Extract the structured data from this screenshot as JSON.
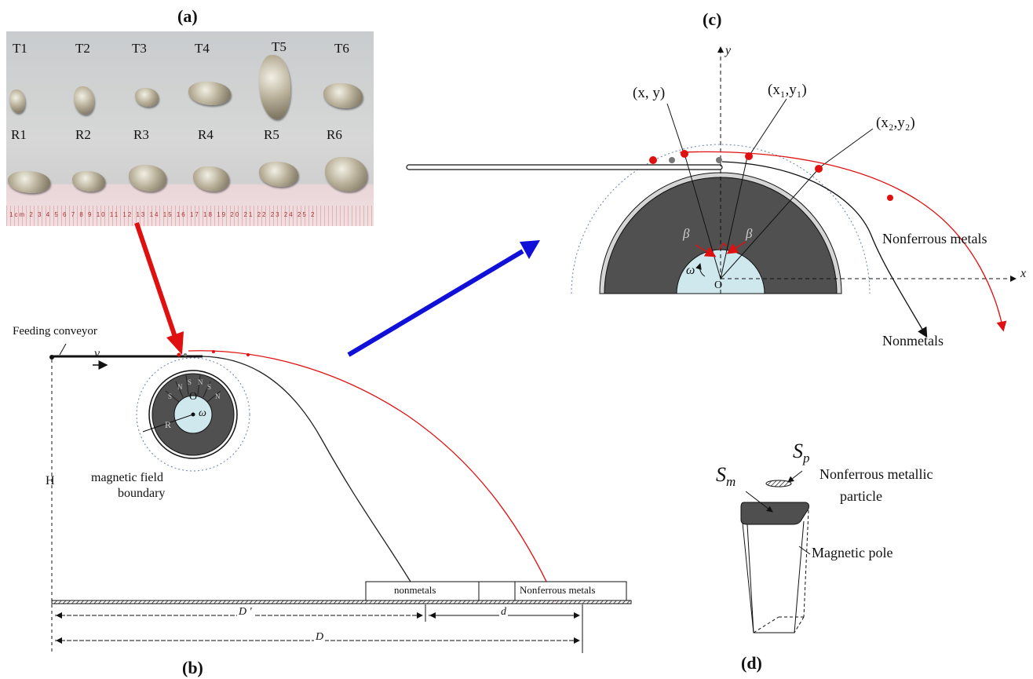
{
  "panels": {
    "a": "(a)",
    "b": "(b)",
    "c": "(c)",
    "d": "(d)"
  },
  "photo": {
    "top_labels": [
      "T1",
      "T2",
      "T3",
      "T4",
      "T5",
      "T6"
    ],
    "bottom_labels": [
      "R1",
      "R2",
      "R3",
      "R4",
      "R5",
      "R6"
    ],
    "ruler_text": "1cm 2 3 4 5 6 7 8 9 10 11 12 13 14 15 16 17 18 19 20 21 22 23 24 25 2"
  },
  "diagram_b": {
    "feeding_conveyor": "Feeding conveyor",
    "velocity": "v",
    "height": "H",
    "field_boundary_1": "magnetic field",
    "field_boundary_2": "boundary",
    "center": "O",
    "omega": "ω",
    "radius": "R",
    "poles": [
      "N",
      "S",
      "N",
      "S",
      "N",
      "S"
    ],
    "bin_nonmetals": "nonmetals",
    "bin_nonferrous": "Nonferrous metals",
    "dim_d_prime": "D '",
    "dim_d": "d",
    "dim_D": "D"
  },
  "diagram_c": {
    "axis_y": "y",
    "axis_x": "x",
    "point_xy": "(x, y)",
    "point_x1y1": "(x₁,y₁)",
    "point_x2y2": "(x₂,y₂)",
    "beta_left": "β",
    "beta_right": "β",
    "omega": "ω",
    "center": "O",
    "nonferrous": "Nonferrous metals",
    "nonmetals": "Nonmetals"
  },
  "diagram_d": {
    "sp": "S",
    "sp_sub": "p",
    "sm": "S",
    "sm_sub": "m",
    "particle_1": "Nonferrous metallic",
    "particle_2": "particle",
    "pole": "Magnetic pole"
  },
  "colors": {
    "red": "#e01010",
    "blue": "#1010d8",
    "drum": "#4a4a4a",
    "core": "#cfe8ee"
  }
}
